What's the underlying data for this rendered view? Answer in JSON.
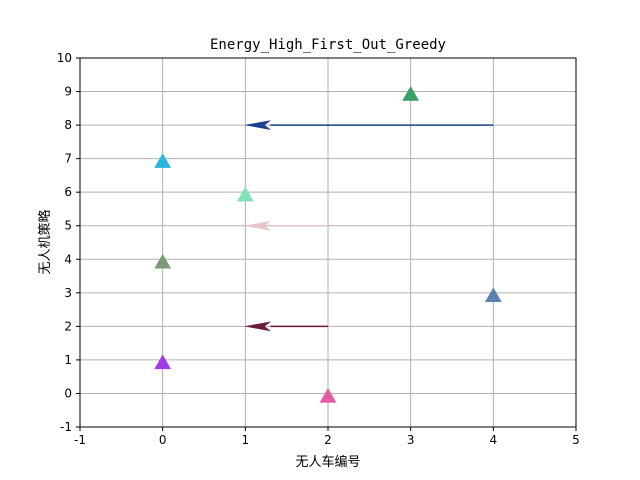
{
  "chart_data": {
    "type": "scatter",
    "title": "Energy_High_First_Out_Greedy",
    "xlabel": "无人车编号",
    "ylabel": "无人机策略",
    "xlim": [
      -1,
      5
    ],
    "ylim": [
      -1,
      10
    ],
    "xticks": [
      "-1",
      "0",
      "1",
      "2",
      "3",
      "4",
      "5"
    ],
    "yticks": [
      "-1",
      "0",
      "1",
      "2",
      "3",
      "4",
      "5",
      "6",
      "7",
      "8",
      "9",
      "10"
    ],
    "grid": true,
    "points": [
      {
        "x": 0,
        "y": 7,
        "marker": "triangle-up",
        "color": "#2bb5e0"
      },
      {
        "x": 1,
        "y": 6,
        "marker": "triangle-up",
        "color": "#7fe3b8"
      },
      {
        "x": 0,
        "y": 4,
        "marker": "triangle-up",
        "color": "#7f9a7a"
      },
      {
        "x": 0,
        "y": 1,
        "marker": "triangle-up",
        "color": "#a13be6"
      },
      {
        "x": 2,
        "y": 0,
        "marker": "triangle-up",
        "color": "#e35aa5"
      },
      {
        "x": 3,
        "y": 9,
        "marker": "triangle-up",
        "color": "#3aa065"
      },
      {
        "x": 4,
        "y": 3,
        "marker": "triangle-up",
        "color": "#5b82b0"
      }
    ],
    "arrows": [
      {
        "x_from": 4,
        "x_to": 1,
        "y": 8,
        "color": "#1f3f8f"
      },
      {
        "x_from": 2,
        "x_to": 1,
        "y": 5,
        "color": "#e8c6c6"
      },
      {
        "x_from": 2,
        "x_to": 1,
        "y": 2,
        "color": "#6b1a3a"
      }
    ]
  }
}
